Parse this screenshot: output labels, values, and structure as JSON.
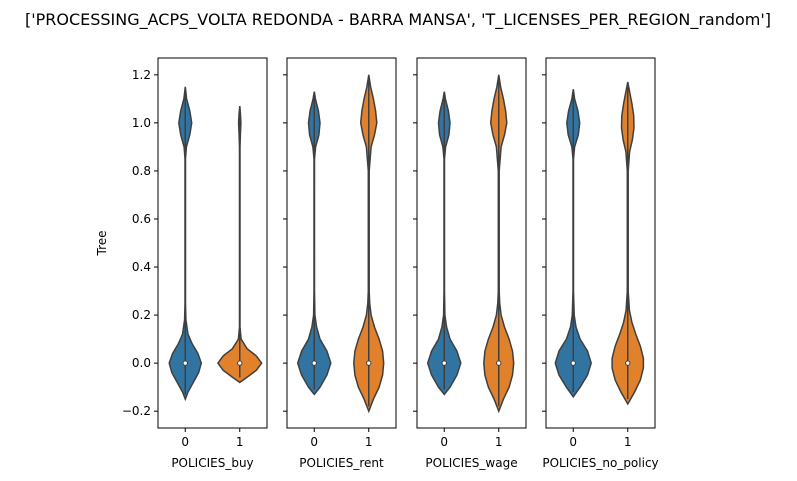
{
  "chart_data": {
    "type": "violin",
    "title": "['PROCESSING_ACPS_VOLTA REDONDA - BARRA MANSA', 'T_LICENSES_PER_REGION_random']",
    "ylabel": "Tree",
    "ylim": [
      -0.27,
      1.27
    ],
    "yticks": [
      -0.2,
      0.0,
      0.2,
      0.4,
      0.6,
      0.8,
      1.0,
      1.2
    ],
    "ytick_labels": [
      "−0.2",
      "0.0",
      "0.2",
      "0.4",
      "0.6",
      "0.8",
      "1.0",
      "1.2"
    ],
    "categories": [
      "0",
      "1"
    ],
    "colors": {
      "0": "#3274a1",
      "1": "#e1812c",
      "edge": "#3f3f3f"
    },
    "subplots": [
      {
        "xlabel": "POLICIES_buy",
        "violins": [
          {
            "category": "0",
            "median": 0.0,
            "range": [
              -0.15,
              1.15
            ],
            "profile": [
              [
                -0.15,
                0
              ],
              [
                -0.12,
                0.12
              ],
              [
                -0.08,
                0.35
              ],
              [
                -0.04,
                0.58
              ],
              [
                0,
                0.7
              ],
              [
                0.04,
                0.55
              ],
              [
                0.08,
                0.3
              ],
              [
                0.12,
                0.12
              ],
              [
                0.18,
                0.03
              ],
              [
                0.25,
                0.01
              ],
              [
                0.85,
                0.01
              ],
              [
                0.9,
                0.05
              ],
              [
                0.95,
                0.2
              ],
              [
                1.0,
                0.28
              ],
              [
                1.05,
                0.2
              ],
              [
                1.1,
                0.06
              ],
              [
                1.15,
                0
              ]
            ]
          },
          {
            "category": "1",
            "median": 0.0,
            "range": [
              -0.08,
              1.07
            ],
            "profile": [
              [
                -0.08,
                0
              ],
              [
                -0.06,
                0.3
              ],
              [
                -0.03,
                0.72
              ],
              [
                0,
                0.95
              ],
              [
                0.03,
                0.72
              ],
              [
                0.06,
                0.32
              ],
              [
                0.1,
                0.06
              ],
              [
                0.15,
                0.01
              ],
              [
                0.9,
                0.01
              ],
              [
                0.95,
                0.03
              ],
              [
                1.0,
                0.05
              ],
              [
                1.04,
                0.03
              ],
              [
                1.07,
                0
              ]
            ]
          }
        ]
      },
      {
        "xlabel": "POLICIES_rent",
        "violins": [
          {
            "category": "0",
            "median": 0.0,
            "range": [
              -0.13,
              1.13
            ],
            "profile": [
              [
                -0.13,
                0
              ],
              [
                -0.1,
                0.25
              ],
              [
                -0.05,
                0.55
              ],
              [
                0,
                0.72
              ],
              [
                0.05,
                0.55
              ],
              [
                0.1,
                0.25
              ],
              [
                0.15,
                0.1
              ],
              [
                0.2,
                0.03
              ],
              [
                0.3,
                0.01
              ],
              [
                0.85,
                0.01
              ],
              [
                0.9,
                0.06
              ],
              [
                0.95,
                0.2
              ],
              [
                1.0,
                0.25
              ],
              [
                1.05,
                0.18
              ],
              [
                1.1,
                0.05
              ],
              [
                1.13,
                0
              ]
            ]
          },
          {
            "category": "1",
            "median": 0.0,
            "range": [
              -0.2,
              1.2
            ],
            "profile": [
              [
                -0.2,
                0
              ],
              [
                -0.15,
                0.2
              ],
              [
                -0.1,
                0.45
              ],
              [
                -0.05,
                0.6
              ],
              [
                0,
                0.65
              ],
              [
                0.05,
                0.6
              ],
              [
                0.1,
                0.45
              ],
              [
                0.15,
                0.25
              ],
              [
                0.2,
                0.1
              ],
              [
                0.25,
                0.04
              ],
              [
                0.3,
                0.02
              ],
              [
                0.8,
                0.02
              ],
              [
                0.9,
                0.1
              ],
              [
                0.95,
                0.25
              ],
              [
                1.0,
                0.35
              ],
              [
                1.05,
                0.3
              ],
              [
                1.1,
                0.2
              ],
              [
                1.15,
                0.08
              ],
              [
                1.2,
                0
              ]
            ]
          }
        ]
      },
      {
        "xlabel": "POLICIES_wage",
        "violins": [
          {
            "category": "0",
            "median": 0.0,
            "range": [
              -0.13,
              1.13
            ],
            "profile": [
              [
                -0.13,
                0
              ],
              [
                -0.1,
                0.25
              ],
              [
                -0.05,
                0.55
              ],
              [
                0,
                0.72
              ],
              [
                0.05,
                0.55
              ],
              [
                0.1,
                0.25
              ],
              [
                0.15,
                0.1
              ],
              [
                0.2,
                0.03
              ],
              [
                0.3,
                0.01
              ],
              [
                0.85,
                0.01
              ],
              [
                0.9,
                0.06
              ],
              [
                0.95,
                0.2
              ],
              [
                1.0,
                0.25
              ],
              [
                1.05,
                0.18
              ],
              [
                1.1,
                0.05
              ],
              [
                1.13,
                0
              ]
            ]
          },
          {
            "category": "1",
            "median": 0.0,
            "range": [
              -0.2,
              1.2
            ],
            "profile": [
              [
                -0.2,
                0
              ],
              [
                -0.15,
                0.2
              ],
              [
                -0.1,
                0.45
              ],
              [
                -0.05,
                0.6
              ],
              [
                0,
                0.65
              ],
              [
                0.05,
                0.6
              ],
              [
                0.1,
                0.45
              ],
              [
                0.15,
                0.25
              ],
              [
                0.2,
                0.1
              ],
              [
                0.25,
                0.04
              ],
              [
                0.3,
                0.02
              ],
              [
                0.8,
                0.02
              ],
              [
                0.9,
                0.1
              ],
              [
                0.95,
                0.25
              ],
              [
                1.0,
                0.35
              ],
              [
                1.05,
                0.3
              ],
              [
                1.1,
                0.2
              ],
              [
                1.15,
                0.08
              ],
              [
                1.2,
                0
              ]
            ]
          }
        ]
      },
      {
        "xlabel": "POLICIES_no_policy",
        "violins": [
          {
            "category": "0",
            "median": 0.0,
            "range": [
              -0.14,
              1.14
            ],
            "profile": [
              [
                -0.14,
                0
              ],
              [
                -0.1,
                0.3
              ],
              [
                -0.05,
                0.62
              ],
              [
                0,
                0.78
              ],
              [
                0.05,
                0.62
              ],
              [
                0.1,
                0.3
              ],
              [
                0.15,
                0.12
              ],
              [
                0.2,
                0.04
              ],
              [
                0.3,
                0.01
              ],
              [
                0.85,
                0.01
              ],
              [
                0.9,
                0.06
              ],
              [
                0.95,
                0.22
              ],
              [
                1.0,
                0.28
              ],
              [
                1.05,
                0.2
              ],
              [
                1.1,
                0.06
              ],
              [
                1.14,
                0
              ]
            ]
          },
          {
            "category": "1",
            "median": 0.0,
            "range": [
              -0.17,
              1.17
            ],
            "profile": [
              [
                -0.17,
                0
              ],
              [
                -0.12,
                0.3
              ],
              [
                -0.07,
                0.55
              ],
              [
                -0.02,
                0.68
              ],
              [
                0.02,
                0.68
              ],
              [
                0.07,
                0.55
              ],
              [
                0.12,
                0.35
              ],
              [
                0.17,
                0.18
              ],
              [
                0.22,
                0.07
              ],
              [
                0.3,
                0.02
              ],
              [
                0.8,
                0.02
              ],
              [
                0.88,
                0.08
              ],
              [
                0.93,
                0.2
              ],
              [
                0.98,
                0.27
              ],
              [
                1.03,
                0.26
              ],
              [
                1.08,
                0.18
              ],
              [
                1.13,
                0.08
              ],
              [
                1.17,
                0
              ]
            ]
          }
        ]
      }
    ]
  }
}
